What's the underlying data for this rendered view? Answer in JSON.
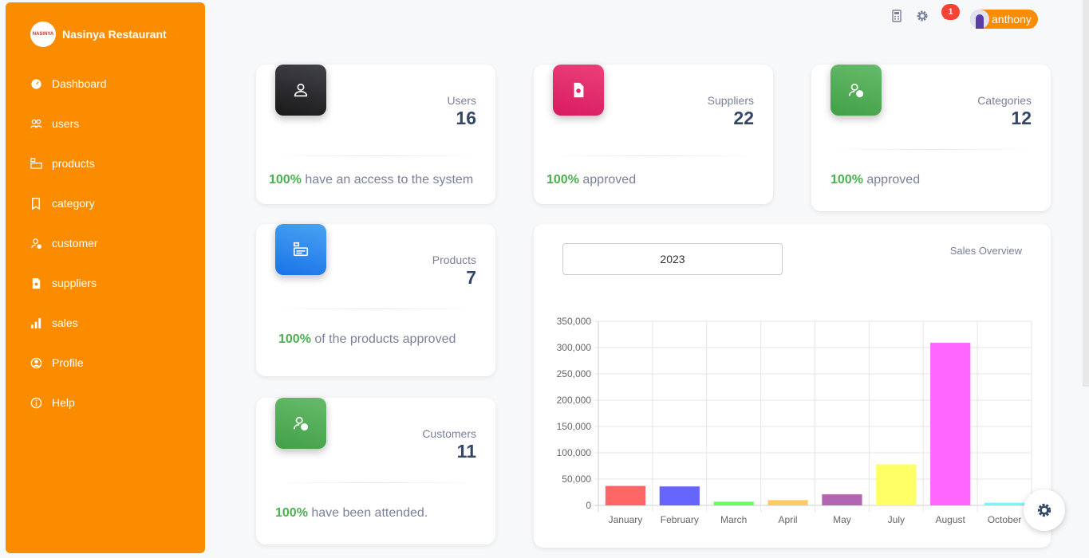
{
  "brand": {
    "name": "Nasinya Restaurant",
    "logo_text": "NASINYA"
  },
  "sidebar": {
    "items": [
      {
        "label": "Dashboard",
        "icon": "dashboard-icon"
      },
      {
        "label": "users",
        "icon": "users-icon"
      },
      {
        "label": "products",
        "icon": "products-icon"
      },
      {
        "label": "category",
        "icon": "bookmark-icon"
      },
      {
        "label": "customer",
        "icon": "customer-icon"
      },
      {
        "label": "suppliers",
        "icon": "document-icon"
      },
      {
        "label": "sales",
        "icon": "bar-chart-icon"
      },
      {
        "label": "Profile",
        "icon": "profile-icon"
      },
      {
        "label": "Help",
        "icon": "info-icon"
      }
    ]
  },
  "topbar": {
    "notification_count": "1",
    "username": "anthony"
  },
  "cards": {
    "users": {
      "label": "Users",
      "value": "16",
      "pct": "100%",
      "text": " have an access to the system",
      "color": "#2b2b2f"
    },
    "suppliers": {
      "label": "Suppliers",
      "value": "22",
      "pct": "100%",
      "text": " approved",
      "color": "#e91e63"
    },
    "categories": {
      "label": "Categories",
      "value": "12",
      "pct": "100%",
      "text": " approved",
      "color": "#4caf50"
    },
    "products": {
      "label": "Products",
      "value": "7",
      "pct": "100%",
      "text": " of the products approved",
      "color": "#1a73e8"
    },
    "customers": {
      "label": "Customers",
      "value": "11",
      "pct": "100%",
      "text": " have been attended.",
      "color": "#4caf50"
    }
  },
  "sales": {
    "year": "2023",
    "title": "Sales Overview"
  },
  "chart_data": {
    "type": "bar",
    "categories": [
      "January",
      "February",
      "March",
      "April",
      "May",
      "July",
      "August",
      "October"
    ],
    "values": [
      37000,
      36000,
      7000,
      10000,
      21000,
      78000,
      309000,
      5000
    ],
    "colors": [
      "#ff6666",
      "#6666ff",
      "#66ff66",
      "#ffc966",
      "#b266b2",
      "#ffff66",
      "#ff66ff",
      "#66ffff"
    ],
    "ylim": [
      0,
      350000
    ],
    "yticks": [
      "0",
      "50,000",
      "100,000",
      "150,000",
      "200,000",
      "250,000",
      "300,000",
      "350,000"
    ],
    "grid": true
  }
}
